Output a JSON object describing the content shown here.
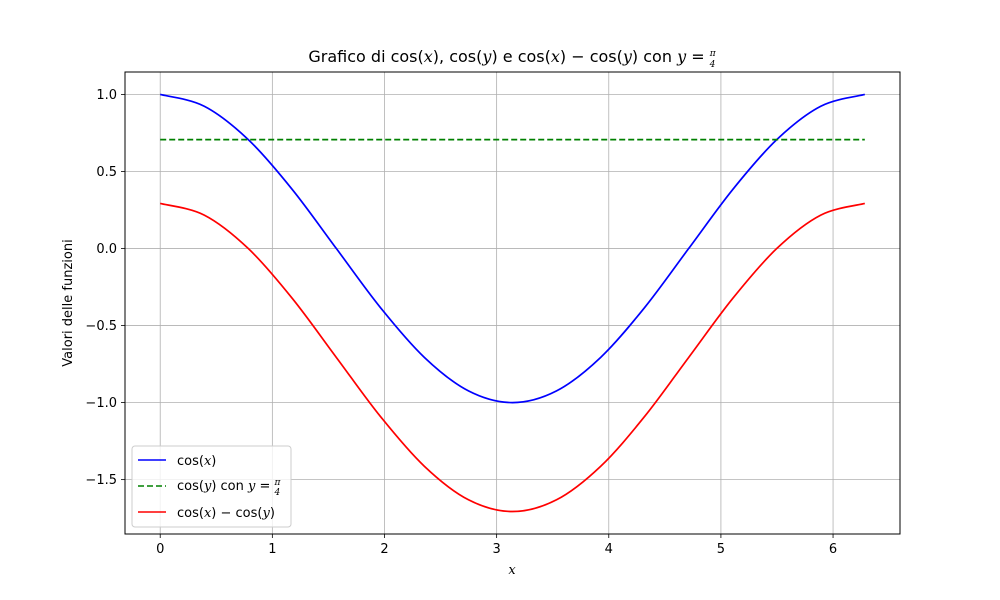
{
  "chart_data": {
    "type": "line",
    "title": {
      "prefix": "Grafico di cos(",
      "p1": ")",
      "p2": ", cos(",
      "p3": ") e cos(",
      "p4": ") − cos(",
      "p5": ") con ",
      "eq": " = ",
      "var_x": "x",
      "var_y": "y",
      "pi": "π",
      "den": "4"
    },
    "xlabel": "x",
    "ylabel": "Valori delle funzioni",
    "xlim": [
      -0.314,
      6.597
    ],
    "ylim": [
      -1.853,
      1.146
    ],
    "xticks": [
      0,
      1,
      2,
      3,
      4,
      5,
      6
    ],
    "yticks": [
      1.0,
      0.5,
      0.0,
      -0.5,
      -1.0,
      -1.5
    ],
    "xtick_labels": [
      "0",
      "1",
      "2",
      "3",
      "4",
      "5",
      "6"
    ],
    "ytick_labels": [
      "1.0",
      "0.5",
      "0.0",
      "−0.5",
      "−1.0",
      "−1.5"
    ],
    "grid": true,
    "legend_position": "lower-left",
    "x_range": [
      0,
      6.283185307
    ],
    "series": [
      {
        "id": "cosx",
        "color": "#0000ff",
        "style": "solid",
        "x": [
          0,
          0.3927,
          0.7854,
          1.1781,
          1.5708,
          1.9635,
          2.3562,
          2.7489,
          3.1416,
          3.5343,
          3.927,
          4.3197,
          4.7124,
          5.1051,
          5.4978,
          5.8905,
          6.2832
        ],
        "y": [
          1.0,
          0.924,
          0.707,
          0.383,
          0.0,
          -0.383,
          -0.707,
          -0.924,
          -1.0,
          -0.924,
          -0.707,
          -0.383,
          0.0,
          0.383,
          0.707,
          0.924,
          1.0
        ],
        "legend": {
          "pre": "cos(",
          "var": "x",
          "post": ")"
        }
      },
      {
        "id": "cosy",
        "color": "#008000",
        "style": "dashed",
        "x": [
          0,
          6.2832
        ],
        "y": [
          0.707,
          0.707
        ],
        "legend": {
          "pre": "cos(",
          "var": "y",
          "mid": ") con ",
          "var2": "y",
          "eq": " = ",
          "pi": "π",
          "den": "4"
        }
      },
      {
        "id": "diff",
        "color": "#ff0000",
        "style": "solid",
        "x": [
          0,
          0.3927,
          0.7854,
          1.1781,
          1.5708,
          1.9635,
          2.3562,
          2.7489,
          3.1416,
          3.5343,
          3.927,
          4.3197,
          4.7124,
          5.1051,
          5.4978,
          5.8905,
          6.2832
        ],
        "y": [
          0.293,
          0.217,
          0.0,
          -0.324,
          -0.707,
          -1.09,
          -1.414,
          -1.631,
          -1.707,
          -1.631,
          -1.414,
          -1.09,
          -0.707,
          -0.324,
          0.0,
          0.217,
          0.293
        ],
        "legend": {
          "pre": "cos(",
          "var": "x",
          "mid": ") − cos(",
          "var2": "y",
          "post": ")"
        }
      }
    ]
  }
}
